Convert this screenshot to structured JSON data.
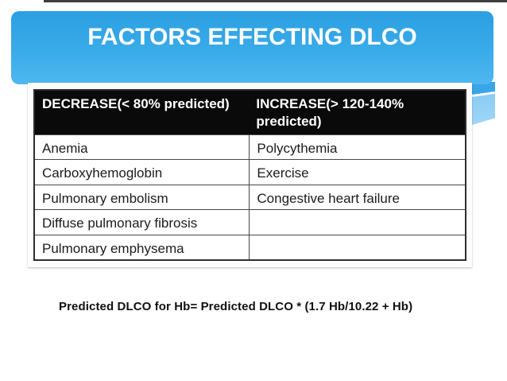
{
  "slide": {
    "title": "FACTORS EFFECTING DLCO",
    "formula": "Predicted DLCO for Hb= Predicted DLCO * (1.7 Hb/10.22 + Hb)"
  },
  "table": {
    "headers": {
      "decrease": "DECREASE(< 80% predicted)",
      "increase": "INCREASE(> 120-140% predicted)"
    },
    "rows": [
      {
        "decrease": "Anemia",
        "increase": "Polycythemia"
      },
      {
        "decrease": "Carboxyhemoglobin",
        "increase": "Exercise"
      },
      {
        "decrease": "Pulmonary embolism",
        "increase": "Congestive heart failure"
      },
      {
        "decrease": "Diffuse pulmonary fibrosis",
        "increase": ""
      },
      {
        "decrease": "Pulmonary emphysema",
        "increase": ""
      }
    ]
  },
  "colors": {
    "banner_gradient_top": "#2b9fe2",
    "banner_gradient_bottom": "#4fb7f0",
    "swoosh_light": "#8bcdf4",
    "table_header_bg": "#0a0a0a",
    "table_border": "#474747",
    "title_text": "#ffffff",
    "body_text": "#1c1c1c"
  }
}
